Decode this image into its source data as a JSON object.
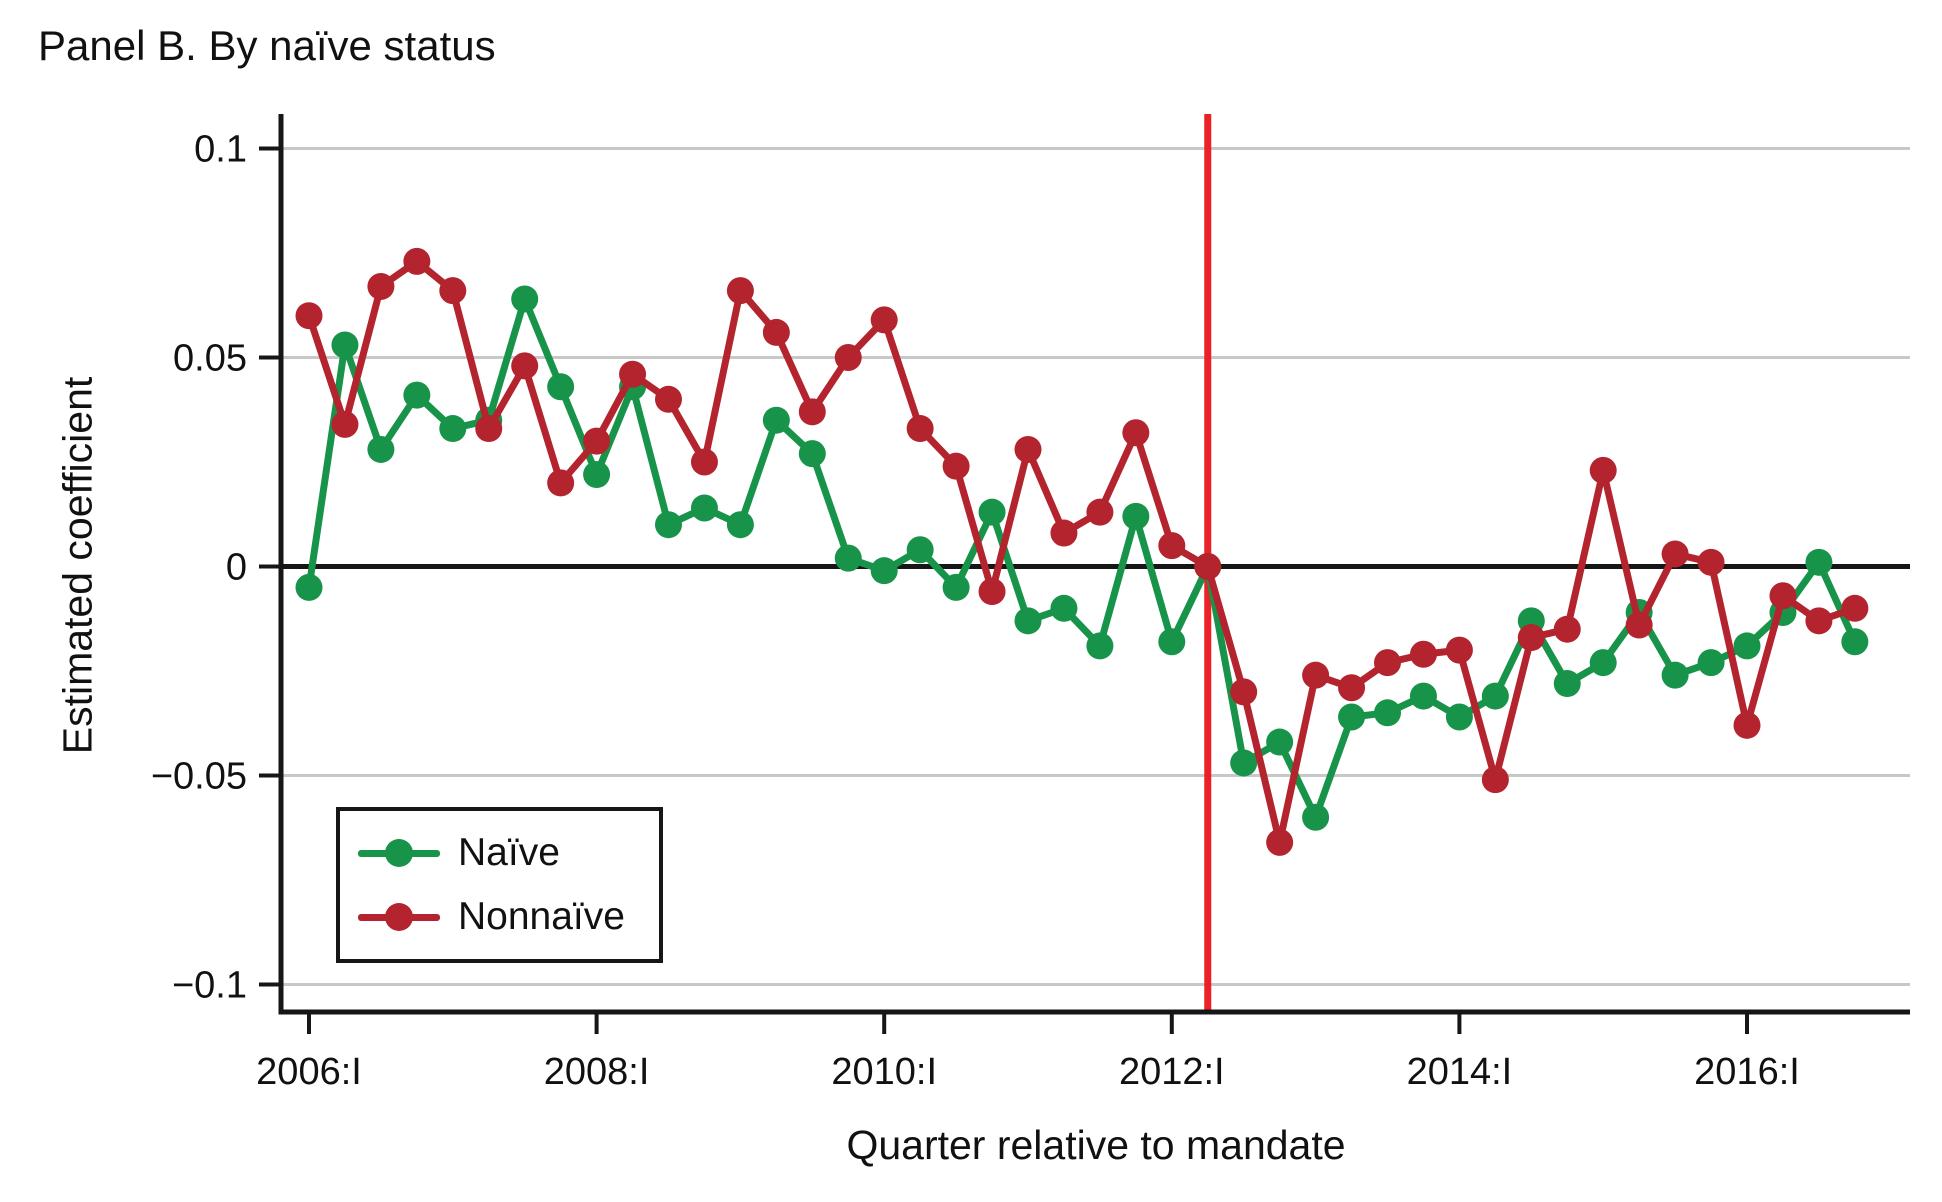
{
  "title": "Panel B. By naïve status",
  "colors": {
    "naive_green": "#18934a",
    "nonnaive_red": "#b3242f",
    "mandate_line_red": "#ec2027",
    "gridline_gray": "#c8c8c8",
    "axis_black": "#161616",
    "text_black": "#111111",
    "background": "#ffffff"
  },
  "chart_data": {
    "type": "line",
    "title": "Panel B. By naïve status",
    "xlabel": "Quarter relative to mandate",
    "ylabel": "Estimated coefficient",
    "ylim": [
      -0.112,
      0.112
    ],
    "grid": "horizontal gridlines at labeled y ticks; zero line solid black",
    "legend_position": "inside bottom-left, boxed",
    "y_ticks": [
      {
        "label": "0.1",
        "value": 0.1
      },
      {
        "label": "0.05",
        "value": 0.05
      },
      {
        "label": "0",
        "value": 0
      },
      {
        "label": "−0.05",
        "value": -0.05
      },
      {
        "label": "−0.1",
        "value": -0.1
      }
    ],
    "x_ticks": [
      {
        "label": "2006:I",
        "quarter_index": 0
      },
      {
        "label": "2008:I",
        "quarter_index": 8
      },
      {
        "label": "2010:I",
        "quarter_index": 16
      },
      {
        "label": "2012:I",
        "quarter_index": 24
      },
      {
        "label": "2014:I",
        "quarter_index": 32
      },
      {
        "label": "2016:I",
        "quarter_index": 40
      }
    ],
    "x_categories": [
      "2006:I",
      "2006:II",
      "2006:III",
      "2006:IV",
      "2007:I",
      "2007:II",
      "2007:III",
      "2007:IV",
      "2008:I",
      "2008:II",
      "2008:III",
      "2008:IV",
      "2009:I",
      "2009:II",
      "2009:III",
      "2009:IV",
      "2010:I",
      "2010:II",
      "2010:III",
      "2010:IV",
      "2011:I",
      "2011:II",
      "2011:III",
      "2011:IV",
      "2012:I",
      "2012:II",
      "2012:III",
      "2012:IV",
      "2013:I",
      "2013:II",
      "2013:III",
      "2013:IV",
      "2014:I",
      "2014:II",
      "2014:III",
      "2014:IV",
      "2015:I",
      "2015:II",
      "2015:III",
      "2015:IV",
      "2016:I",
      "2016:II",
      "2016:III",
      "2016:IV"
    ],
    "series": [
      {
        "name": "Naïve",
        "color": "#18934a",
        "values": [
          -0.005,
          0.053,
          0.028,
          0.041,
          0.033,
          0.035,
          0.064,
          0.043,
          0.022,
          0.043,
          0.01,
          0.014,
          0.01,
          0.035,
          0.027,
          0.002,
          -0.001,
          0.004,
          -0.005,
          0.013,
          -0.013,
          -0.01,
          -0.019,
          0.012,
          -0.018,
          0.0,
          -0.047,
          -0.042,
          -0.06,
          -0.036,
          -0.035,
          -0.031,
          -0.036,
          -0.031,
          -0.013,
          -0.028,
          -0.023,
          -0.011,
          -0.026,
          -0.023,
          -0.019,
          -0.011,
          0.001,
          -0.018
        ]
      },
      {
        "name": "Nonnaïve",
        "color": "#b3242f",
        "values": [
          0.06,
          0.034,
          0.067,
          0.073,
          0.066,
          0.033,
          0.048,
          0.02,
          0.03,
          0.046,
          0.04,
          0.025,
          0.066,
          0.056,
          0.037,
          0.05,
          0.059,
          0.033,
          0.024,
          -0.006,
          0.028,
          0.008,
          0.013,
          0.032,
          0.005,
          0.0,
          -0.03,
          -0.066,
          -0.026,
          -0.029,
          -0.023,
          -0.021,
          -0.02,
          -0.051,
          -0.017,
          -0.015,
          0.023,
          -0.014,
          0.003,
          0.001,
          -0.038,
          -0.007,
          -0.013,
          -0.01
        ]
      }
    ],
    "vline": {
      "quarter_index": 25,
      "color": "#ec2027",
      "meaning": "mandate quarter (coefficient normalized to 0)"
    }
  },
  "legend": {
    "items": [
      {
        "label": "Naïve"
      },
      {
        "label": "Nonnaïve"
      }
    ]
  }
}
